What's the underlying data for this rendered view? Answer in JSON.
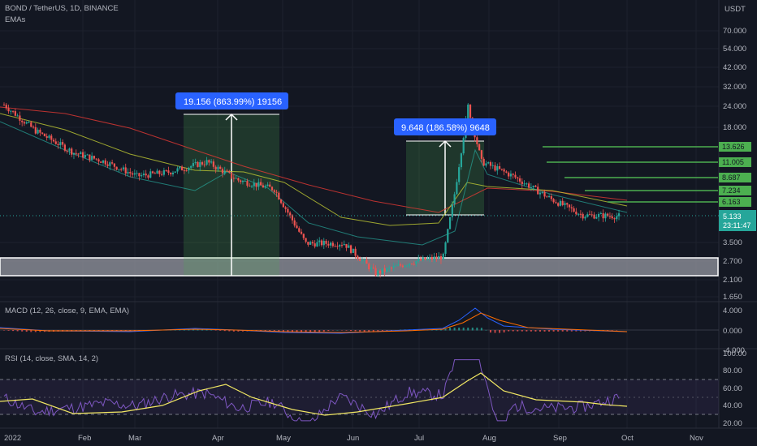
{
  "header": {
    "symbol_title": "BOND / TetherUS, 1D, BINANCE",
    "indicator_name": "EMAs",
    "quote_currency": "USDT",
    "macd_label": "MACD (12, 26, close, 9, EMA, EMA)",
    "rsi_label": "RSI (14, close, SMA, 14, 2)"
  },
  "price_axis": {
    "ticks": [
      "70.000",
      "54.000",
      "42.000",
      "32.000",
      "24.000",
      "18.000",
      "3.500",
      "2.700",
      "2.100",
      "1.650"
    ],
    "last_price": "5.133",
    "countdown": "23:11:47",
    "last_price_color": "#26a69a"
  },
  "macd_axis": {
    "ticks": [
      "4.000",
      "0.000",
      "-4.000"
    ]
  },
  "rsi_axis": {
    "ticks": [
      "100.00",
      "80.00",
      "60.00",
      "40.00",
      "20.00"
    ]
  },
  "time_axis": {
    "labels": [
      "2022",
      "Feb",
      "Mar",
      "Apr",
      "May",
      "Jun",
      "Jul",
      "Aug",
      "Sep",
      "Oct",
      "Nov"
    ]
  },
  "annotations": {
    "measure1": "19.156 (863.99%) 19156",
    "measure2": "9.648 (186.58%) 9648",
    "levels": [
      "13.626",
      "11.005",
      "8.687",
      "7.234",
      "6.163"
    ],
    "level_color": "#4caf50",
    "support_zone": "2.700 – 2.100"
  },
  "chart_data": {
    "type": "candlestick",
    "symbol": "BOND / TetherUS, 1D, BINANCE",
    "x_range": [
      "2022-01",
      "2022-11"
    ],
    "y_scale": "log",
    "series": [
      {
        "name": "BOND / TetherUS",
        "points": [
          {
            "x": "2022-01-01",
            "y": 24.5
          },
          {
            "x": "2022-01-15",
            "y": 17.0
          },
          {
            "x": "2022-02-01",
            "y": 12.5
          },
          {
            "x": "2022-02-15",
            "y": 11.0
          },
          {
            "x": "2022-03-01",
            "y": 9.0
          },
          {
            "x": "2022-03-15",
            "y": 9.5
          },
          {
            "x": "2022-04-01",
            "y": 11.0
          },
          {
            "x": "2022-04-15",
            "y": 8.5
          },
          {
            "x": "2022-05-01",
            "y": 7.5
          },
          {
            "x": "2022-05-15",
            "y": 3.5
          },
          {
            "x": "2022-06-01",
            "y": 3.5
          },
          {
            "x": "2022-06-15",
            "y": 2.3
          },
          {
            "x": "2022-07-01",
            "y": 2.7
          },
          {
            "x": "2022-07-15",
            "y": 2.9
          },
          {
            "x": "2022-07-20",
            "y": 7.0
          },
          {
            "x": "2022-07-26",
            "y": 24.0
          },
          {
            "x": "2022-08-01",
            "y": 11.0
          },
          {
            "x": "2022-08-15",
            "y": 9.0
          },
          {
            "x": "2022-09-01",
            "y": 6.5
          },
          {
            "x": "2022-09-15",
            "y": 5.2
          },
          {
            "x": "2022-10-01",
            "y": 5.133
          }
        ]
      }
    ],
    "macd": {
      "range": [
        -4,
        4
      ],
      "peak": 3.5
    },
    "rsi": {
      "range": [
        20,
        100
      ],
      "bands": [
        30,
        70
      ],
      "peak": 92
    },
    "grid": true
  }
}
